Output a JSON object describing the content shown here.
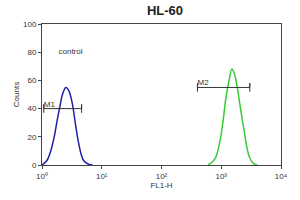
{
  "chart_data": {
    "type": "line",
    "title": "HL-60",
    "x_label": "FL1-H",
    "y_label": "Counts",
    "log": "x",
    "xlim": [
      1,
      10000
    ],
    "xticks": [
      {
        "value": 1,
        "label": "10⁰"
      },
      {
        "value": 10,
        "label": "10¹"
      },
      {
        "value": 100,
        "label": "10²"
      },
      {
        "value": 1000,
        "label": "10³"
      },
      {
        "value": 10000,
        "label": "10⁴"
      }
    ],
    "ylim": [
      0,
      100
    ],
    "yticks": [
      0,
      20,
      40,
      60,
      80,
      100
    ],
    "grid": false,
    "series": [
      {
        "color": "#2020a8",
        "x": [
          1,
          1.2,
          1.4,
          1.6,
          1.8,
          2.0,
          2.2,
          2.5,
          2.8,
          3.2,
          3.6,
          4.0,
          4.5,
          5.0,
          6.0,
          7.0
        ],
        "values": [
          0,
          3,
          10,
          20,
          32,
          42,
          50,
          55,
          53,
          44,
          30,
          18,
          8,
          3,
          0.5,
          0
        ]
      },
      {
        "color": "#33cc33",
        "x": [
          600,
          700,
          800,
          900,
          1000,
          1100,
          1200,
          1350,
          1500,
          1650,
          1850,
          2100,
          2400,
          2700,
          3000,
          3500,
          4000
        ],
        "values": [
          0,
          2,
          5,
          12,
          22,
          35,
          48,
          60,
          68,
          65,
          55,
          40,
          25,
          12,
          5,
          1,
          0
        ]
      }
    ],
    "annotations": [
      {
        "text": "control",
        "x": 3,
        "y": 80
      }
    ],
    "gates": [
      {
        "label": "M1",
        "range": [
          1.07,
          4.6
        ],
        "y": 40
      },
      {
        "label": "M2",
        "range": [
          400,
          3000
        ],
        "y": 55
      }
    ]
  }
}
